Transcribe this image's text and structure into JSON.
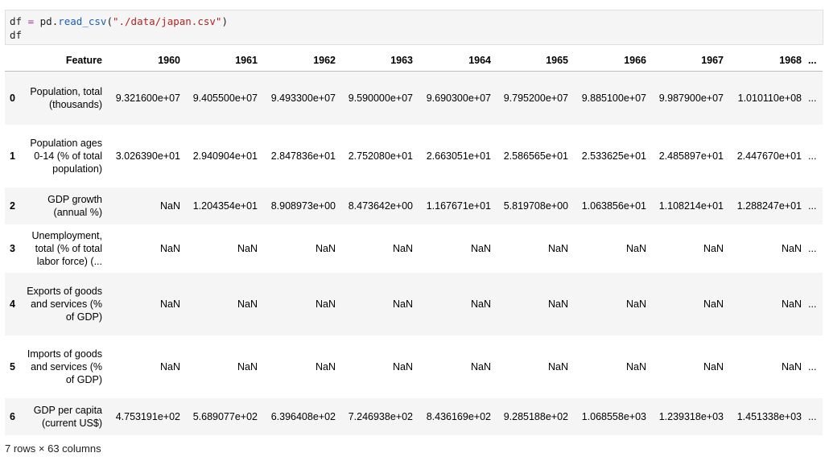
{
  "code": {
    "tokens": {
      "df1": "df",
      "eq": " = ",
      "pd": "pd.",
      "fn": "read_csv",
      "open": "(",
      "path": "\"./data/japan.csv\"",
      "close": ")",
      "df2": "df"
    }
  },
  "table": {
    "index_header": "",
    "columns": [
      "Feature",
      "1960",
      "1961",
      "1962",
      "1963",
      "1964",
      "1965",
      "1966",
      "1967",
      "1968",
      "..."
    ],
    "rows": [
      {
        "index": "0",
        "feature": "Population, total (thousands)",
        "values": [
          "9.321600e+07",
          "9.405500e+07",
          "9.493300e+07",
          "9.590000e+07",
          "9.690300e+07",
          "9.795200e+07",
          "9.885100e+07",
          "9.987900e+07",
          "1.010110e+08",
          "..."
        ]
      },
      {
        "index": "1",
        "feature": "Population ages 0-14 (% of total population)",
        "values": [
          "3.026390e+01",
          "2.940904e+01",
          "2.847836e+01",
          "2.752080e+01",
          "2.663051e+01",
          "2.586565e+01",
          "2.533625e+01",
          "2.485897e+01",
          "2.447670e+01",
          "..."
        ]
      },
      {
        "index": "2",
        "feature": "GDP growth (annual %)",
        "values": [
          "NaN",
          "1.204354e+01",
          "8.908973e+00",
          "8.473642e+00",
          "1.167671e+01",
          "5.819708e+00",
          "1.063856e+01",
          "1.108214e+01",
          "1.288247e+01",
          "..."
        ]
      },
      {
        "index": "3",
        "feature": "Unemployment, total (% of total labor force) (...",
        "values": [
          "NaN",
          "NaN",
          "NaN",
          "NaN",
          "NaN",
          "NaN",
          "NaN",
          "NaN",
          "NaN",
          "..."
        ]
      },
      {
        "index": "4",
        "feature": "Exports of goods and services (% of GDP)",
        "values": [
          "NaN",
          "NaN",
          "NaN",
          "NaN",
          "NaN",
          "NaN",
          "NaN",
          "NaN",
          "NaN",
          "..."
        ]
      },
      {
        "index": "5",
        "feature": "Imports of goods and services (% of GDP)",
        "values": [
          "NaN",
          "NaN",
          "NaN",
          "NaN",
          "NaN",
          "NaN",
          "NaN",
          "NaN",
          "NaN",
          "..."
        ]
      },
      {
        "index": "6",
        "feature": "GDP per capita (current US$)",
        "values": [
          "4.753191e+02",
          "5.689077e+02",
          "6.396408e+02",
          "7.246938e+02",
          "8.436169e+02",
          "9.285188e+02",
          "1.068558e+03",
          "1.239318e+03",
          "1.451338e+03",
          "..."
        ]
      }
    ]
  },
  "footer": "7 rows × 63 columns"
}
